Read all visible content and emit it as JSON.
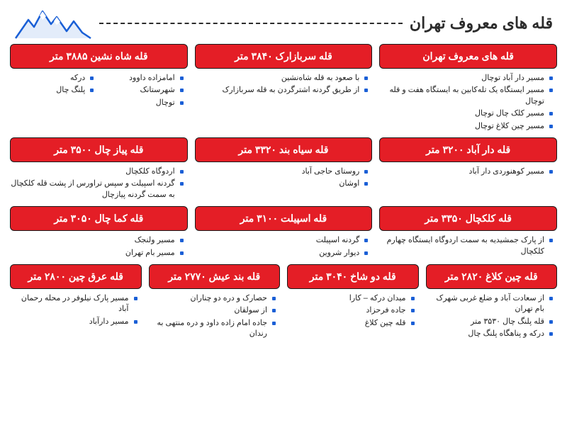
{
  "title": "قله های معروف تهران",
  "styling": {
    "header_bg": "#e41e26",
    "header_text": "#ffffff",
    "border_color": "#1a1a1a",
    "bullet_color": "#1a5fd6",
    "body_text": "#222222",
    "title_fontsize": 22,
    "header_fontsize": 14,
    "item_fontsize": 11,
    "border_radius": 6
  },
  "rows": [
    {
      "layout": "row-3",
      "cards": [
        {
          "title": "قله های معروف تهران",
          "items": [
            "مسیر دار آباد توچال",
            "مسیر ایستگاه یک تله‌کابین به ایستگاه هفت و قله توچال",
            "مسیر کلک چال توچال",
            "مسیر چین کلاغ توچال"
          ]
        },
        {
          "title": "قله سربازارک ۳۸۴۰ متر",
          "items": [
            "با صعود به قله شاه‌نشین",
            "از طریق گردنه اشترگردن به قله سربازارک"
          ]
        },
        {
          "title": "قله شاه نشین ۳۸۸۵ متر",
          "cols2": true,
          "items": [
            "امامزاده داوود",
            "درکه",
            "شهرستانک",
            "پلنگ چال",
            "توچال"
          ]
        }
      ]
    },
    {
      "layout": "row-3",
      "cards": [
        {
          "title": "قله دار آباد ۳۲۰۰ متر",
          "items": [
            "مسیر کوهنوردی دار آباد"
          ]
        },
        {
          "title": "قله سیاه بند ۳۳۲۰ متر",
          "items": [
            "روستای حاجی آباد",
            "اوشان"
          ]
        },
        {
          "title": "قله پیاز چال ۳۵۰۰ متر",
          "items": [
            "اردوگاه کلکچال",
            "گردنه اسپیلت و سپس تراورس از پشت قله کلکچال به سمت گردنه پیازچال"
          ]
        }
      ]
    },
    {
      "layout": "row-3",
      "cards": [
        {
          "title": "قله کلکچال ۳۳۵۰ متر",
          "items": [
            "از پارک جمشیدیه به سمت اردوگاه ایستگاه چهارم کلکچال"
          ]
        },
        {
          "title": "قله اسپیلت ۳۱۰۰ متر",
          "items": [
            "گردنه اسپیلت",
            "دیوار شروین"
          ]
        },
        {
          "title": "قله کما چال ۳۰۵۰ متر",
          "items": [
            "مسیر ولنجک",
            "مسیر بام تهران"
          ]
        }
      ]
    },
    {
      "layout": "row-4",
      "cards": [
        {
          "title": "قله چین کلاغ ۲۸۲۰ متر",
          "items": [
            "از سعادت آباد و ضلع غربی شهرک بام تهران",
            "قله پلنگ چال ۳۵۳۰ متر",
            "درکه و پناهگاه پلنگ چال"
          ]
        },
        {
          "title": "قله دو شاخ ۳۰۴۰ متر",
          "items": [
            "میدان درکه – کارا",
            "جاده فرحزاد",
            "قله چین کلاغ"
          ]
        },
        {
          "title": "قله بند عیش ۲۷۷۰ متر",
          "items": [
            "حصارک و دره دو چناران",
            "از سولقان",
            "جاده امام زاده داود و دره منتهی به رندان"
          ]
        },
        {
          "title": "قله عرق چین ۲۸۰۰ متر",
          "items": [
            "مسیر پارک نیلوفر در محله رحمان آباد",
            "مسیر دارآباد"
          ]
        }
      ]
    }
  ]
}
